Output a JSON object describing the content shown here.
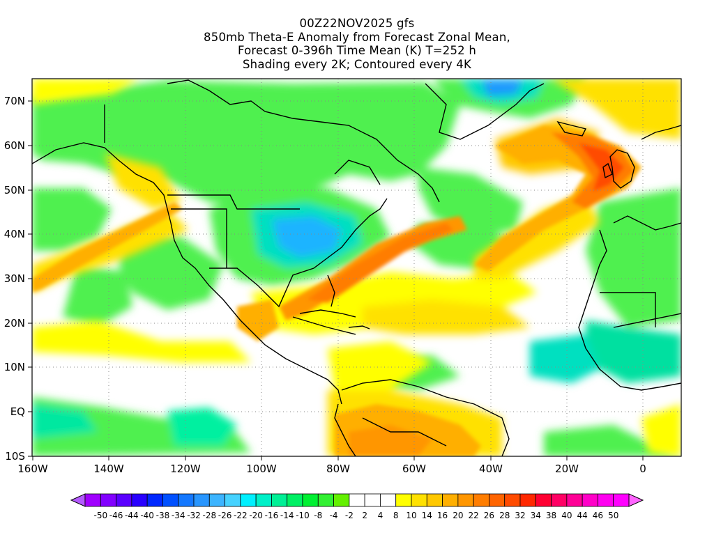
{
  "title": {
    "line1": "00Z22NOV2025 gfs",
    "line2": "850mb Theta-E Anomaly from Forecast Zonal Mean,",
    "line3": "Forecast 0-396h Time Mean (K) T=252 h",
    "line4": "Shading every 2K; Contoured every 4K"
  },
  "map": {
    "lon_range": [
      -160,
      10
    ],
    "lat_range": [
      -10,
      75
    ],
    "lat_ticks": [
      {
        "lat": 70,
        "label": "70N"
      },
      {
        "lat": 60,
        "label": "60N"
      },
      {
        "lat": 50,
        "label": "50N"
      },
      {
        "lat": 40,
        "label": "40N"
      },
      {
        "lat": 30,
        "label": "30N"
      },
      {
        "lat": 20,
        "label": "20N"
      },
      {
        "lat": 10,
        "label": "10N"
      },
      {
        "lat": 0,
        "label": "EQ"
      },
      {
        "lat": -10,
        "label": "10S"
      }
    ],
    "lon_ticks": [
      {
        "lon": -160,
        "label": "160W"
      },
      {
        "lon": -140,
        "label": "140W"
      },
      {
        "lon": -120,
        "label": "120W"
      },
      {
        "lon": -100,
        "label": "100W"
      },
      {
        "lon": -80,
        "label": "80W"
      },
      {
        "lon": -60,
        "label": "60W"
      },
      {
        "lon": -40,
        "label": "40W"
      },
      {
        "lon": -20,
        "label": "20W"
      },
      {
        "lon": 0,
        "label": "0"
      }
    ]
  },
  "colorbar": {
    "labels": [
      "-50",
      "-46",
      "-44",
      "-40",
      "-38",
      "-34",
      "-32",
      "-28",
      "-26",
      "-22",
      "-20",
      "-16",
      "-14",
      "-10",
      "-8",
      "-4",
      "-2",
      "2",
      "4",
      "8",
      "10",
      "14",
      "16",
      "20",
      "22",
      "26",
      "28",
      "32",
      "34",
      "38",
      "40",
      "44",
      "46",
      "50"
    ],
    "colors": [
      "#a000ff",
      "#8200ff",
      "#5a00ff",
      "#2800ff",
      "#0028ff",
      "#0050ff",
      "#1478ff",
      "#2896ff",
      "#3cb4ff",
      "#46d2ff",
      "#00f0ff",
      "#00f0c8",
      "#00f096",
      "#00f064",
      "#00f032",
      "#32f032",
      "#64f000",
      "#ffffff",
      "#ffffff",
      "#ffffff",
      "#ffff00",
      "#ffe100",
      "#ffc800",
      "#ffaf00",
      "#ff9600",
      "#ff7d00",
      "#ff6400",
      "#ff4b00",
      "#ff2800",
      "#ff0032",
      "#ff0064",
      "#ff0096",
      "#ff00c8",
      "#ff00f0",
      "#ff00ff"
    ]
  },
  "legend_end_left": "#b45aff",
  "legend_end_right": "#ff64ff"
}
